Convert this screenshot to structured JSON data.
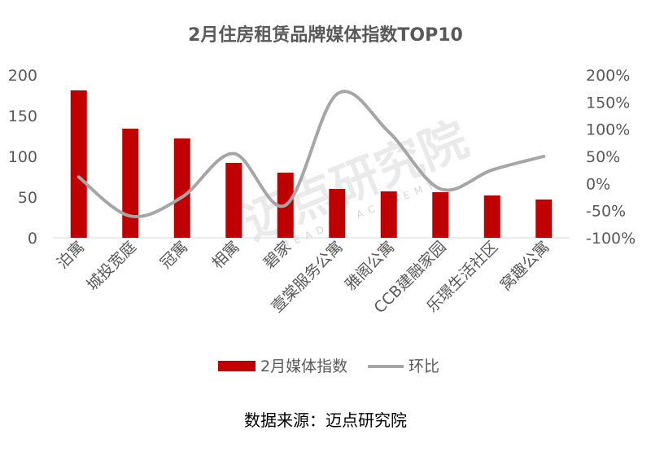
{
  "chart_data": {
    "type": "bar",
    "title": "2月住房租赁品牌媒体指数TOP10",
    "categories": [
      "泊寓",
      "城投宽庭",
      "冠寓",
      "相寓",
      "碧家",
      "壹棠服务公寓",
      "雅阁公寓",
      "CCB建融家园",
      "乐璟生活社区",
      "窝趣公寓"
    ],
    "series": [
      {
        "name": "2月媒体指数",
        "type": "bar",
        "axis": "left",
        "color": "#c00000",
        "values": [
          181,
          134,
          122,
          92,
          80,
          60,
          57,
          56,
          52,
          47
        ]
      },
      {
        "name": "环比",
        "type": "line",
        "axis": "right",
        "color": "#a6a6a6",
        "values": [
          12,
          -60,
          -25,
          55,
          -40,
          165,
          95,
          -10,
          25,
          50
        ]
      }
    ],
    "ylim": [
      0,
      200
    ],
    "y2lim": [
      -100,
      200
    ],
    "yticks": [
      "0",
      "50",
      "100",
      "150",
      "200"
    ],
    "y2ticks": [
      "-100%",
      "-50%",
      "0%",
      "50%",
      "100%",
      "150%",
      "200%"
    ],
    "legend_position": "bottom",
    "grid": false
  },
  "watermark": {
    "text": "迈点研究院",
    "sub": "MEADIN ACADEMY"
  },
  "source": "数据来源：迈点研究院"
}
